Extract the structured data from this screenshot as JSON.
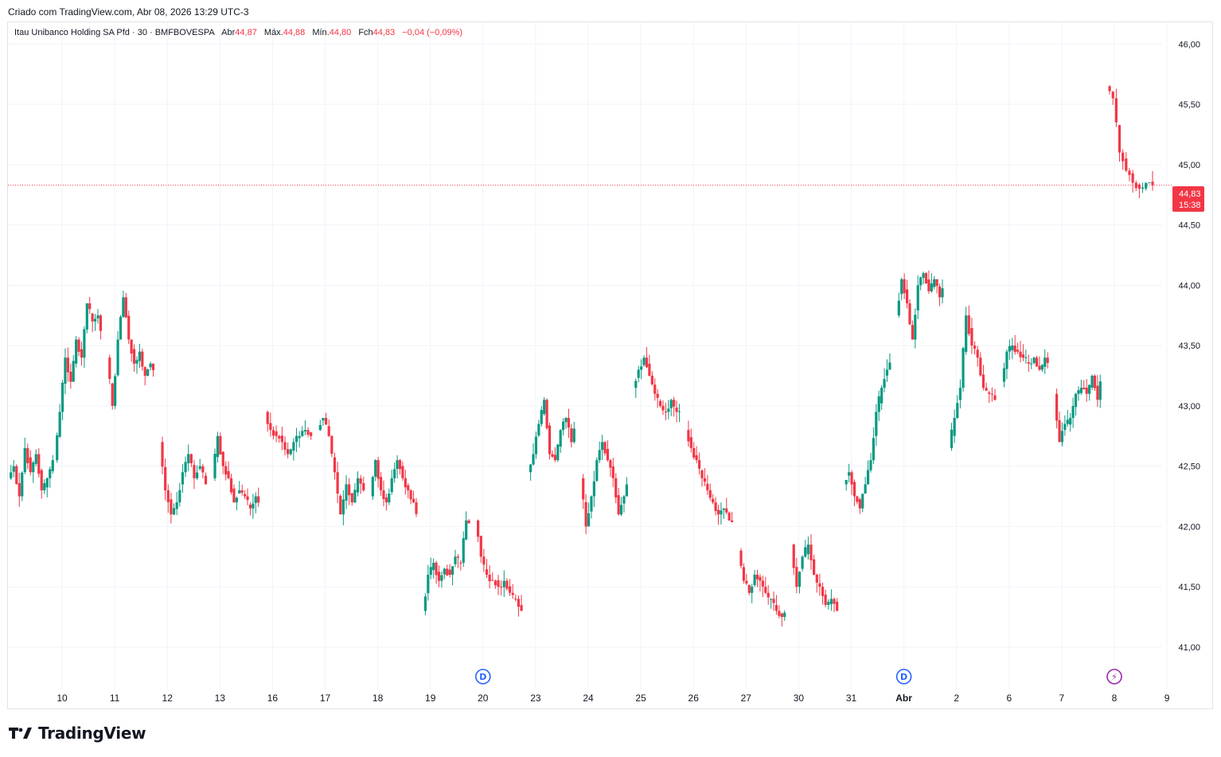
{
  "header": {
    "caption": "Criado com TradingView.com, Abr 08, 2026 13:29 UTC-3"
  },
  "legend": {
    "symbol": "Itau Unibanco Holding SA Pfd · 30 · BMFBOVESPA",
    "open_label": "Abr",
    "open": "44,87",
    "high_label": "Máx.",
    "high": "44,88",
    "low_label": "Mín.",
    "low": "44,80",
    "close_label": "Fch",
    "close": "44,83",
    "change": "−0,04 (−0,09%)"
  },
  "price_tag": {
    "price": "44,83",
    "countdown": "15:38"
  },
  "brand": {
    "name": "TradingView"
  },
  "colors": {
    "up": "#089981",
    "down": "#f23645",
    "grid": "#f0f3fa",
    "text": "#131722",
    "dividend_marker": "#2962ff",
    "earnings_marker": "#9c27b0"
  },
  "chart_data": {
    "type": "candlestick",
    "interval": "30",
    "y_axis": {
      "min": 40.65,
      "max": 46.18,
      "ticks": [
        41.0,
        41.5,
        42.0,
        42.5,
        43.0,
        43.5,
        44.0,
        44.5,
        45.0,
        45.5,
        46.0
      ],
      "tick_labels": [
        "41,00",
        "41,50",
        "42,00",
        "42,50",
        "43,00",
        "43,50",
        "44,00",
        "44,50",
        "45,00",
        "45,50",
        "46,00"
      ],
      "position": "right"
    },
    "x_axis": {
      "labels": [
        "10",
        "11",
        "12",
        "13",
        "16",
        "17",
        "18",
        "19",
        "20",
        "23",
        "24",
        "25",
        "26",
        "27",
        "30",
        "31",
        "Abr",
        "2",
        "6",
        "7",
        "8",
        "9"
      ],
      "bold_labels": [
        "Abr"
      ]
    },
    "last_price": 44.83,
    "events": [
      {
        "day": "20",
        "type": "dividend",
        "symbol": "D"
      },
      {
        "day": "Abr",
        "type": "dividend",
        "symbol": "D"
      },
      {
        "day": "8",
        "type": "earnings",
        "symbol": "⚡"
      }
    ],
    "days": [
      {
        "label": "9",
        "start": 42.4,
        "path": [
          42.5,
          42.25,
          42.65,
          42.45,
          42.6,
          42.3,
          42.4,
          42.55
        ]
      },
      {
        "label": "10",
        "start": 42.55,
        "path": [
          42.95,
          43.4,
          43.2,
          43.55,
          43.4,
          43.85,
          43.7,
          43.75,
          43.5,
          43.4
        ]
      },
      {
        "label": "11",
        "start": 43.4,
        "path": [
          43.0,
          43.55,
          43.9,
          43.55,
          43.35,
          43.45,
          43.25,
          43.35,
          43.2,
          43.4
        ]
      },
      {
        "label": "12",
        "start": 42.7,
        "path": [
          42.3,
          42.1,
          42.2,
          42.45,
          42.6,
          42.4,
          42.5,
          42.35
        ]
      },
      {
        "label": "13",
        "start": 42.4,
        "path": [
          42.75,
          42.5,
          42.4,
          42.2,
          42.3,
          42.25,
          42.15,
          42.25,
          42.1,
          42.15
        ]
      },
      {
        "label": "16",
        "start": 42.95,
        "path": [
          42.8,
          42.75,
          42.7,
          42.6,
          42.7,
          42.75,
          42.8,
          42.75
        ]
      },
      {
        "label": "17",
        "start": 42.8,
        "path": [
          42.9,
          42.75,
          42.45,
          42.1,
          42.35,
          42.2,
          42.4,
          42.3
        ]
      },
      {
        "label": "18",
        "start": 42.25,
        "path": [
          42.55,
          42.3,
          42.2,
          42.4,
          42.55,
          42.4,
          42.3,
          42.2,
          42.05
        ]
      },
      {
        "label": "19",
        "start": 41.3,
        "path": [
          41.6,
          41.7,
          41.55,
          41.65,
          41.6,
          41.75,
          41.7,
          42.05,
          41.95
        ]
      },
      {
        "label": "20",
        "start": 42.05,
        "path": [
          41.75,
          41.6,
          41.55,
          41.5,
          41.55,
          41.45,
          41.4,
          41.3
        ]
      },
      {
        "label": "23",
        "start": 42.45,
        "path": [
          42.6,
          42.85,
          43.05,
          42.6,
          42.55,
          42.8,
          42.9,
          42.7,
          42.9
        ]
      },
      {
        "label": "24",
        "start": 42.4,
        "path": [
          42.0,
          42.25,
          42.55,
          42.7,
          42.55,
          42.4,
          42.1,
          42.25,
          42.4
        ]
      },
      {
        "label": "25",
        "start": 43.15,
        "path": [
          43.3,
          43.4,
          43.25,
          43.1,
          43.0,
          42.95,
          43.05,
          42.95,
          42.95
        ]
      },
      {
        "label": "26",
        "start": 42.8,
        "path": [
          42.65,
          42.55,
          42.4,
          42.3,
          42.2,
          42.1,
          42.15,
          42.05,
          42.0
        ]
      },
      {
        "label": "27",
        "start": 41.8,
        "path": [
          41.55,
          41.45,
          41.6,
          41.55,
          41.45,
          41.4,
          41.3,
          41.25,
          41.3
        ]
      },
      {
        "label": "30",
        "start": 41.85,
        "path": [
          41.5,
          41.75,
          41.85,
          41.6,
          41.5,
          41.35,
          41.4,
          41.3
        ]
      },
      {
        "label": "31",
        "start": 42.35,
        "path": [
          42.45,
          42.25,
          42.15,
          42.35,
          42.55,
          42.95,
          43.15,
          43.3,
          43.4
        ]
      },
      {
        "label": "Abr",
        "start": 43.75,
        "path": [
          44.05,
          43.85,
          43.55,
          44.0,
          44.1,
          43.95,
          44.05,
          43.9,
          44.0,
          43.9
        ]
      },
      {
        "label": "2",
        "start": 42.65,
        "path": [
          42.9,
          43.15,
          43.75,
          43.5,
          43.4,
          43.15,
          43.1,
          43.05
        ]
      },
      {
        "label": "6",
        "start": 43.2,
        "path": [
          43.45,
          43.5,
          43.45,
          43.4,
          43.35,
          43.4,
          43.3,
          43.4,
          43.35
        ]
      },
      {
        "label": "7",
        "start": 43.1,
        "path": [
          42.7,
          42.85,
          42.9,
          43.1,
          43.15,
          43.1,
          43.25,
          43.05,
          43.3
        ]
      },
      {
        "label": "8",
        "start": 45.65,
        "path": [
          45.55,
          45.1,
          44.95,
          44.85,
          44.8,
          44.85,
          44.83
        ]
      }
    ]
  }
}
